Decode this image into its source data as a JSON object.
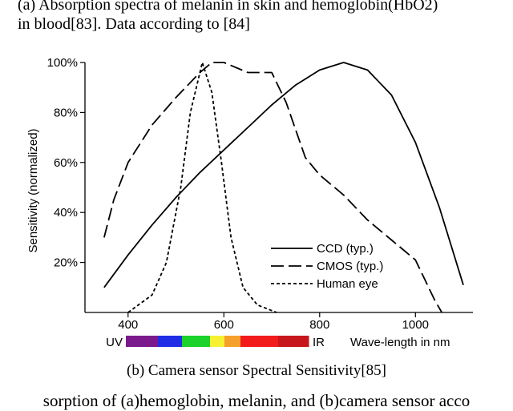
{
  "captions": {
    "top_line1": "(a) Absorption spectra of melanin in skin and hemoglobin(HbO2)",
    "top_line2": "in blood[83]. Data according to [84]",
    "sub": "(b) Camera sensor Spectral Sensitivity[85]",
    "bottom": "sorption of (a)hemoglobin, melanin, and (b)camera sensor acco"
  },
  "chart_data": {
    "type": "line",
    "title": "",
    "xlabel": "Wave-length in nm",
    "ylabel": "Sensitivity (normalized)",
    "xlim": [
      310,
      1120
    ],
    "ylim": [
      0,
      100
    ],
    "x_ticks": [
      "400",
      "600",
      "800",
      "1000"
    ],
    "y_ticks": [
      "20%",
      "40%",
      "60%",
      "80%",
      "100%"
    ],
    "legend_position": "bottom-right",
    "spectrum_labels": {
      "left": "UV",
      "right": "IR"
    },
    "spectrum_colors": [
      "#7b1a8c",
      "#1f2de6",
      "#1bd12c",
      "#f6f232",
      "#f5a02a",
      "#f31c1c",
      "#c8171c"
    ],
    "series": [
      {
        "name": "CCD (typ.)",
        "dash": "solid",
        "x": [
          350,
          400,
          450,
          500,
          550,
          600,
          650,
          700,
          750,
          800,
          850,
          900,
          950,
          1000,
          1050,
          1100
        ],
        "y": [
          10,
          23,
          35,
          46,
          56,
          65,
          74,
          83,
          91,
          97,
          100,
          97,
          87,
          68,
          42,
          11
        ]
      },
      {
        "name": "CMOS (typ.)",
        "dash": "long",
        "x": [
          350,
          370,
          400,
          450,
          500,
          550,
          575,
          600,
          650,
          700,
          730,
          770,
          800,
          850,
          900,
          950,
          1000,
          1040,
          1055
        ],
        "y": [
          30,
          45,
          60,
          75,
          86,
          96,
          100,
          100,
          96,
          96,
          84,
          62,
          55,
          47,
          37,
          29,
          21,
          5,
          0
        ]
      },
      {
        "name": "Human eye",
        "dash": "short",
        "x": [
          400,
          450,
          480,
          510,
          530,
          555,
          575,
          595,
          615,
          640,
          670,
          710
        ],
        "y": [
          0,
          7,
          20,
          50,
          80,
          100,
          88,
          60,
          30,
          10,
          3,
          0
        ]
      }
    ]
  }
}
